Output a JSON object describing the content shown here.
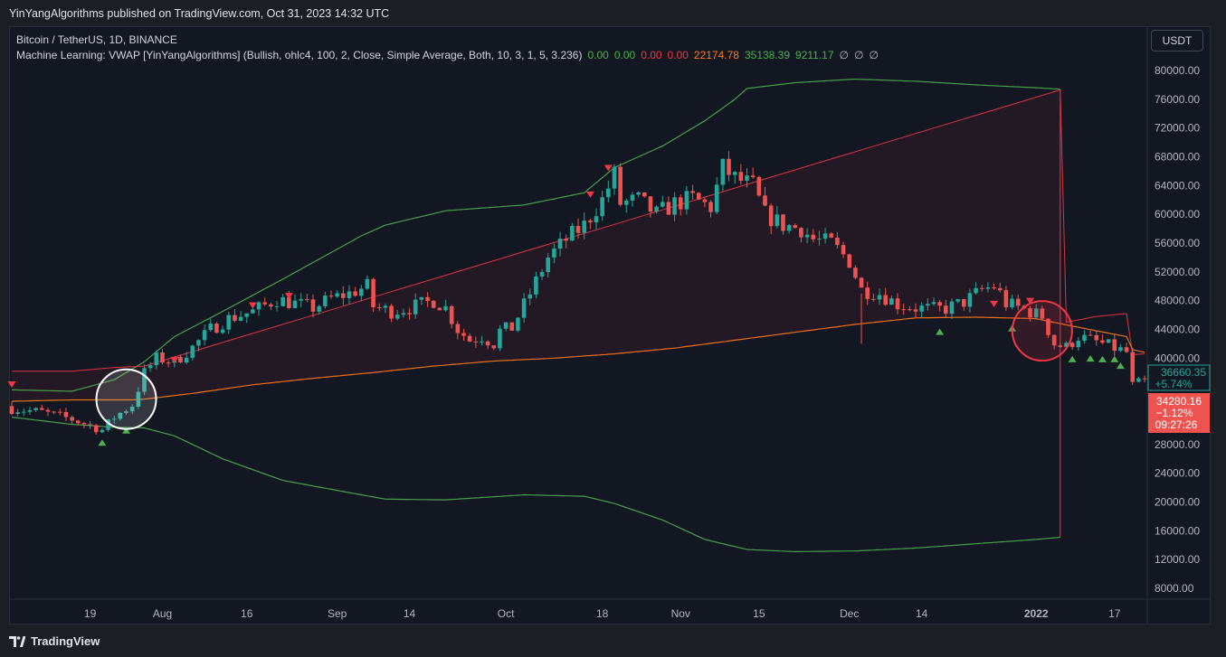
{
  "header": {
    "published": "YinYangAlgorithms published on TradingView.com, Oct 31, 2023 14:32 UTC"
  },
  "legend": {
    "symbol": "Bitcoin / TetherUS, 1D, BINANCE",
    "indicator": "Machine Learning: VWAP [YinYangAlgorithms] (Bullish, ohlc4, 100, 2, Close, Simple Average, Both, 10, 3, 1, 5, 3.236)",
    "values": [
      {
        "text": "0.00",
        "color": "#4caf50"
      },
      {
        "text": "0.00",
        "color": "#4caf50"
      },
      {
        "text": "0.00",
        "color": "#f23645"
      },
      {
        "text": "0.00",
        "color": "#f23645"
      },
      {
        "text": "22174.78",
        "color": "#ff7a1a"
      },
      {
        "text": "35138.39",
        "color": "#4caf50"
      },
      {
        "text": "9211.17",
        "color": "#4caf50"
      },
      {
        "text": "∅",
        "color": "#b2b5be"
      },
      {
        "text": "∅",
        "color": "#b2b5be"
      },
      {
        "text": "∅",
        "color": "#b2b5be"
      }
    ]
  },
  "price_scale": {
    "unit": "USDT"
  },
  "badges": {
    "green_price": "36660.35",
    "green_change": "+5.74%",
    "red_price": "34280.16",
    "red_change": "−1.12%",
    "countdown": "09:27:26"
  },
  "footer": {
    "brand": "TradingView"
  },
  "colors": {
    "up": "#26a69a",
    "down": "#ef5350",
    "band": "#4caf50",
    "vwap": "#ff7a1a",
    "upper": "#f23645"
  },
  "chart_data": {
    "type": "candlestick",
    "title": "Bitcoin / TetherUS, 1D, BINANCE",
    "ylim": [
      5000,
      83000
    ],
    "y_ticks": [
      80000,
      76000,
      72000,
      68000,
      64000,
      60000,
      56000,
      52000,
      48000,
      44000,
      40000,
      36000,
      32000,
      28000,
      24000,
      20000,
      16000,
      12000,
      8000
    ],
    "y_tick_labels": [
      "80000.00",
      "76000.00",
      "72000.00",
      "68000.00",
      "64000.00",
      "60000.00",
      "56000.00",
      "52000.00",
      "48000.00",
      "44000.00",
      "40000.00",
      "36000.00",
      "32000.00",
      "28000.00",
      "24000.00",
      "20000.00",
      "16000.00",
      "12000.00",
      "8000.00"
    ],
    "x_range": [
      0,
      188
    ],
    "x_ticks": [
      {
        "label": "19",
        "i": 13
      },
      {
        "label": "Aug",
        "i": 25
      },
      {
        "label": "16",
        "i": 39
      },
      {
        "label": "Sep",
        "i": 54
      },
      {
        "label": "14",
        "i": 66
      },
      {
        "label": "Oct",
        "i": 82
      },
      {
        "label": "18",
        "i": 98
      },
      {
        "label": "Nov",
        "i": 111
      },
      {
        "label": "15",
        "i": 124
      },
      {
        "label": "Dec",
        "i": 139
      },
      {
        "label": "14",
        "i": 151
      },
      {
        "label": "2022",
        "i": 170
      },
      {
        "label": "17",
        "i": 183
      }
    ],
    "close_anchors": [
      [
        0,
        33000
      ],
      [
        5,
        32500
      ],
      [
        10,
        31500
      ],
      [
        15,
        30000
      ],
      [
        17,
        31800
      ],
      [
        20,
        33500
      ],
      [
        22,
        38000
      ],
      [
        24,
        40000
      ],
      [
        27,
        39500
      ],
      [
        30,
        41500
      ],
      [
        33,
        44000
      ],
      [
        36,
        45500
      ],
      [
        40,
        46500
      ],
      [
        44,
        48200
      ],
      [
        47,
        47600
      ],
      [
        50,
        47000
      ],
      [
        53,
        48300
      ],
      [
        56,
        49000
      ],
      [
        59,
        50000
      ],
      [
        60,
        47200
      ],
      [
        63,
        46500
      ],
      [
        66,
        47000
      ],
      [
        70,
        48000
      ],
      [
        72,
        47000
      ],
      [
        74,
        44000
      ],
      [
        76,
        42500
      ],
      [
        78,
        43000
      ],
      [
        80,
        42000
      ],
      [
        81,
        43800
      ],
      [
        83,
        44200
      ],
      [
        86,
        49000
      ],
      [
        89,
        54000
      ],
      [
        92,
        56500
      ],
      [
        95,
        58500
      ],
      [
        98,
        62000
      ],
      [
        100,
        65500
      ],
      [
        101,
        61500
      ],
      [
        104,
        62000
      ],
      [
        107,
        60000
      ],
      [
        110,
        61500
      ],
      [
        113,
        62200
      ],
      [
        116,
        61000
      ],
      [
        118,
        66500
      ],
      [
        120,
        65000
      ],
      [
        123,
        64000
      ],
      [
        125,
        60000
      ],
      [
        128,
        58500
      ],
      [
        131,
        58000
      ],
      [
        133,
        56500
      ],
      [
        136,
        56000
      ],
      [
        139,
        53500
      ],
      [
        141,
        49500
      ],
      [
        144,
        49000
      ],
      [
        147,
        47500
      ],
      [
        150,
        47000
      ],
      [
        153,
        46800
      ],
      [
        155,
        46900
      ],
      [
        158,
        47800
      ],
      [
        161,
        49500
      ],
      [
        163,
        50000
      ],
      [
        164,
        49000
      ],
      [
        165,
        47600
      ],
      [
        168,
        46800
      ],
      [
        171,
        45800
      ],
      [
        173,
        42000
      ],
      [
        175,
        41500
      ],
      [
        177,
        43000
      ],
      [
        179,
        42500
      ],
      [
        181,
        42000
      ],
      [
        183,
        41400
      ],
      [
        185,
        40800
      ],
      [
        186,
        36200
      ],
      [
        188,
        36700
      ]
    ],
    "series": [
      {
        "name": "Upper deviation band (green)",
        "x": [
          0,
          10,
          17,
          22,
          27,
          35,
          45,
          58,
          62,
          72,
          85,
          95,
          100,
          108,
          115,
          120,
          122,
          130,
          140,
          150,
          160,
          170,
          174
        ],
        "values": [
          35600,
          35400,
          37000,
          39500,
          43000,
          46500,
          51000,
          57000,
          58500,
          60500,
          61300,
          63000,
          66500,
          69500,
          73000,
          76000,
          77500,
          78300,
          78800,
          78500,
          78000,
          77600,
          77400
        ]
      },
      {
        "name": "Lower deviation band (green)",
        "x": [
          0,
          10,
          17,
          22,
          27,
          35,
          45,
          58,
          62,
          72,
          85,
          95,
          100,
          108,
          115,
          120,
          122,
          130,
          140,
          150,
          160,
          170,
          174
        ],
        "values": [
          31800,
          30800,
          30400,
          30300,
          29200,
          26000,
          23000,
          21000,
          20400,
          20300,
          21000,
          20800,
          19800,
          17500,
          14800,
          13800,
          13400,
          13100,
          13200,
          13600,
          14200,
          14800,
          15100
        ]
      },
      {
        "name": "Upper VWAP (red)",
        "x": [
          0,
          10,
          17,
          22,
          174,
          175,
          180,
          185,
          186,
          188
        ],
        "values": [
          38200,
          38200,
          38700,
          38900,
          77300,
          45000,
          45800,
          46200,
          40500,
          40600
        ]
      },
      {
        "name": "VWAP (orange)",
        "x": [
          0,
          10,
          20,
          22,
          30,
          40,
          50,
          60,
          70,
          80,
          90,
          100,
          110,
          120,
          130,
          140,
          150,
          160,
          170,
          174,
          180,
          185,
          186,
          188
        ],
        "values": [
          34000,
          34200,
          34200,
          34300,
          35100,
          36300,
          37200,
          38000,
          38900,
          39600,
          40000,
          40600,
          41400,
          42500,
          43600,
          44700,
          45600,
          45700,
          45500,
          44800,
          43800,
          43000,
          41200,
          40800
        ]
      }
    ],
    "markers": {
      "sell": [
        [
          0,
          36400
        ],
        [
          27,
          39800
        ],
        [
          40,
          47400
        ],
        [
          46,
          48700
        ],
        [
          96,
          62800
        ],
        [
          99,
          66500
        ],
        [
          163,
          47600
        ],
        [
          169,
          48000
        ]
      ],
      "buy": [
        [
          15,
          28200
        ],
        [
          19,
          29900
        ],
        [
          154,
          43600
        ],
        [
          166,
          44100
        ],
        [
          176,
          39800
        ],
        [
          179,
          39900
        ],
        [
          181,
          39800
        ],
        [
          183,
          39800
        ],
        [
          184,
          38900
        ]
      ]
    },
    "highlights": [
      {
        "i": 19,
        "price": 34300,
        "style": "white"
      },
      {
        "i": 171,
        "price": 43800,
        "style": "red"
      }
    ],
    "last_prices": {
      "green": 36660.35,
      "red": 34280.16
    }
  }
}
